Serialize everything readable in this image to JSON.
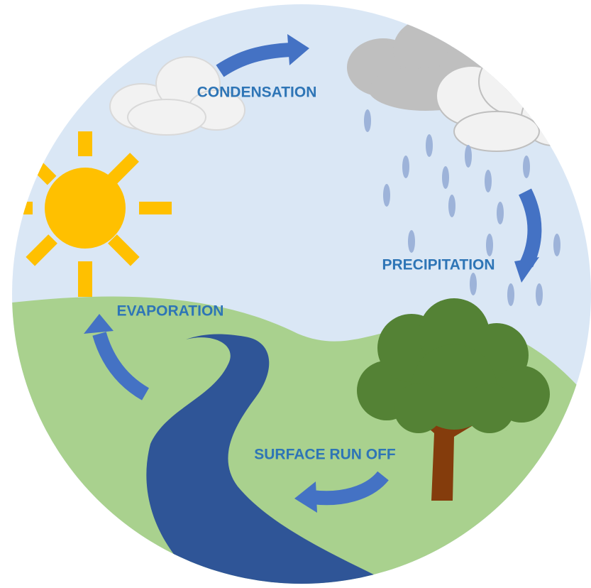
{
  "stages": [
    {
      "label": "CONDENSATION"
    },
    {
      "label": "PRECIPITATION"
    },
    {
      "label": "EVAPORATION"
    },
    {
      "label": "SURFACE RUN OFF"
    }
  ]
}
